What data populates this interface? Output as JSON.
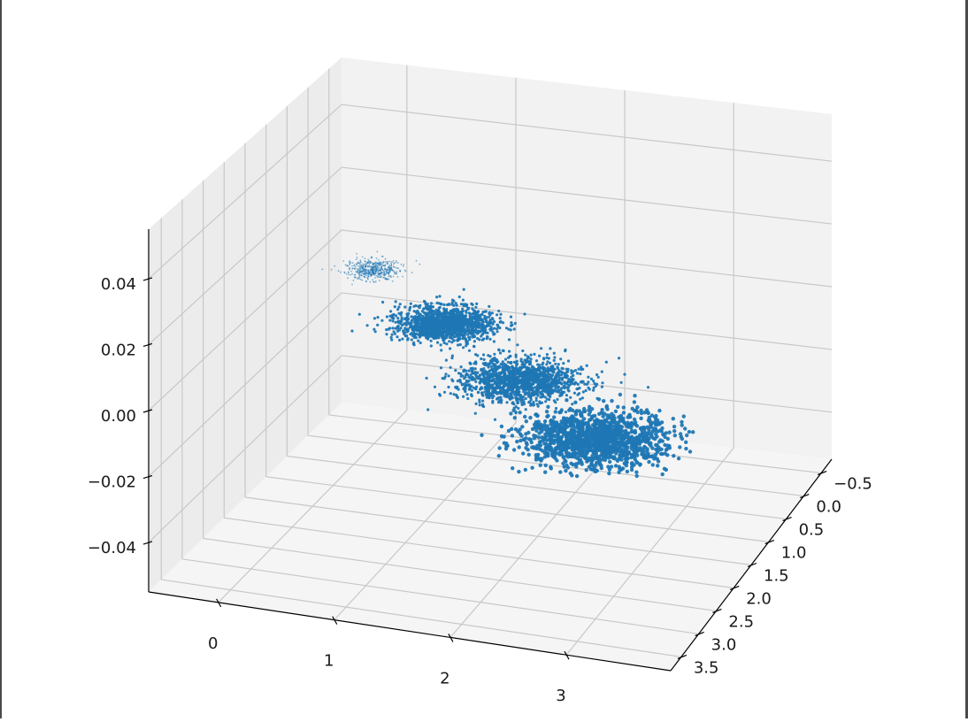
{
  "chart_data": {
    "type": "scatter",
    "projection": "3d",
    "title": "",
    "xlabel": "",
    "ylabel": "",
    "zlabel": "",
    "grid": true,
    "marker_color": "#1f77b4",
    "pane_color": "#f2f2f2",
    "grid_color": "#c8c8c8",
    "x_ticks": [
      "0",
      "1",
      "2",
      "3"
    ],
    "y_ticks": [
      "−0.5",
      "0.0",
      "0.5",
      "1.0",
      "1.5",
      "2.0",
      "2.5",
      "3.0",
      "3.5"
    ],
    "z_ticks": [
      "−0.04",
      "−0.02",
      "0.00",
      "0.02",
      "0.04"
    ],
    "xlim": [
      -0.6,
      3.9
    ],
    "ylim": [
      -0.8,
      3.8
    ],
    "zlim": [
      -0.055,
      0.055
    ],
    "series": [
      {
        "center_x": 0.0,
        "center_y": 0.0,
        "z": 0.0,
        "spread": 0.12,
        "point_size": "small"
      },
      {
        "center_x": 1.0,
        "center_y": 1.0,
        "z": 0.0,
        "spread": 0.2,
        "point_size": "medium"
      },
      {
        "center_x": 2.0,
        "center_y": 2.0,
        "z": 0.0,
        "spread": 0.25,
        "point_size": "medium"
      },
      {
        "center_x": 3.0,
        "center_y": 3.0,
        "z": 0.0,
        "spread": 0.3,
        "point_size": "large"
      }
    ]
  }
}
